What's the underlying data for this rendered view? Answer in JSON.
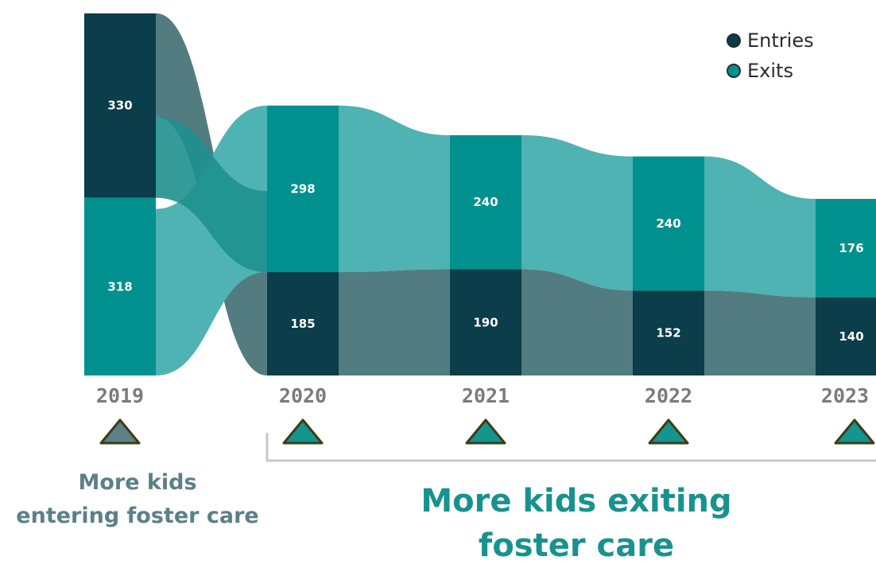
{
  "chart_data": {
    "type": "sankey",
    "categories": [
      "2019",
      "2020",
      "2021",
      "2022",
      "2023"
    ],
    "series": [
      {
        "name": "Entries",
        "values": [
          330,
          185,
          190,
          152,
          140
        ]
      },
      {
        "name": "Exits",
        "values": [
          318,
          298,
          240,
          240,
          176
        ]
      }
    ],
    "legend_position": "top-right",
    "grid": false
  },
  "colors": {
    "entries_node": "#0b3d4a",
    "exits_node": "#00918f",
    "entries_flow": "#527c80",
    "exits_flow": "#4eb3b2",
    "cross_flow": "#1e908e",
    "marker_entries": "#5d8088",
    "marker_exits": "#139590",
    "marker_outline": "#3d3c15"
  },
  "legend": {
    "items": [
      {
        "label": "Entries",
        "color": "#0b3d4a"
      },
      {
        "label": "Exits",
        "color": "#00918f"
      }
    ]
  },
  "captions": {
    "left_line1": "More kids",
    "left_line2": "entering foster care",
    "right_line1": "More kids exiting",
    "right_line2": "foster care"
  }
}
